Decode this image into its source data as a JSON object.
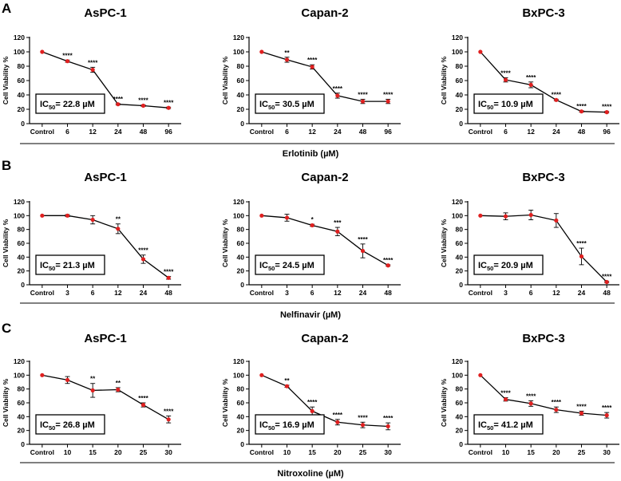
{
  "chart_data": [
    {
      "row": "A",
      "drug": "Erlotinib (µM)",
      "categories": [
        "Control",
        "6",
        "12",
        "24",
        "48",
        "96"
      ],
      "panels": [
        {
          "title": "AsPC-1",
          "ic50_value": "22.8",
          "ic50_unit": "µM",
          "values": [
            100,
            87,
            75,
            27,
            25,
            22
          ],
          "errors": [
            0,
            1.5,
            3.5,
            1,
            1,
            1
          ],
          "sig": [
            "",
            "****",
            "****",
            "****",
            "****",
            "****"
          ]
        },
        {
          "title": "Capan-2",
          "ic50_value": "30.5",
          "ic50_unit": "µM",
          "values": [
            100,
            89,
            79,
            39,
            31,
            31
          ],
          "errors": [
            0,
            3.5,
            3,
            3.5,
            3,
            3
          ],
          "sig": [
            "",
            "**",
            "****",
            "****",
            "****",
            "****"
          ]
        },
        {
          "title": "BxPC-3",
          "ic50_value": "10.9",
          "ic50_unit": "µM",
          "values": [
            100,
            61,
            54,
            33,
            17,
            16
          ],
          "errors": [
            0,
            3,
            4,
            1,
            1,
            1
          ],
          "sig": [
            "",
            "****",
            "****",
            "****",
            "****",
            "****"
          ]
        }
      ]
    },
    {
      "row": "B",
      "drug": "Nelfinavir (µM)",
      "categories": [
        "Control",
        "3",
        "6",
        "12",
        "24",
        "48"
      ],
      "panels": [
        {
          "title": "AsPC-1",
          "ic50_value": "21.3",
          "ic50_unit": "µM",
          "values": [
            100,
            100,
            94,
            81,
            37,
            10
          ],
          "errors": [
            0,
            1.5,
            6,
            7,
            6,
            2
          ],
          "sig": [
            "",
            "",
            "",
            "**",
            "****",
            "****"
          ]
        },
        {
          "title": "Capan-2",
          "ic50_value": "24.5",
          "ic50_unit": "µM",
          "values": [
            100,
            97,
            86,
            77,
            49,
            28
          ],
          "errors": [
            0,
            5,
            1.5,
            6,
            10,
            1
          ],
          "sig": [
            "",
            "",
            "*",
            "***",
            "****",
            "****"
          ]
        },
        {
          "title": "BxPC-3",
          "ic50_value": "20.9",
          "ic50_unit": "µM",
          "values": [
            100,
            99,
            101,
            93,
            41,
            4
          ],
          "errors": [
            0,
            5,
            7,
            10,
            12,
            1
          ],
          "sig": [
            "",
            "",
            "",
            "",
            "****",
            "****"
          ]
        }
      ]
    },
    {
      "row": "C",
      "drug": "Nitroxoline (µM)",
      "categories": [
        "Control",
        "10",
        "15",
        "20",
        "25",
        "30"
      ],
      "panels": [
        {
          "title": "AsPC-1",
          "ic50_value": "26.8",
          "ic50_unit": "µM",
          "values": [
            100,
            93,
            78,
            79,
            57,
            36
          ],
          "errors": [
            0,
            5,
            10,
            3,
            3,
            5
          ],
          "sig": [
            "",
            "",
            "**",
            "**",
            "****",
            "****"
          ]
        },
        {
          "title": "Capan-2",
          "ic50_value": "16.9",
          "ic50_unit": "µM",
          "values": [
            100,
            84,
            48,
            32,
            28,
            26
          ],
          "errors": [
            0,
            1.5,
            6,
            4,
            4,
            5
          ],
          "sig": [
            "",
            "**",
            "****",
            "****",
            "****",
            "****"
          ]
        },
        {
          "title": "BxPC-3",
          "ic50_value": "41.2",
          "ic50_unit": "µM",
          "values": [
            100,
            65,
            59,
            50,
            45,
            42
          ],
          "errors": [
            0,
            2.5,
            4,
            4,
            3,
            4
          ],
          "sig": [
            "",
            "****",
            "****",
            "****",
            "****",
            "****"
          ]
        }
      ]
    }
  ],
  "axis": {
    "ylabel": "Cell Viability %",
    "yticks": [
      0,
      20,
      40,
      60,
      80,
      100,
      120
    ],
    "ylim": [
      0,
      120
    ]
  },
  "ic50_label": "IC",
  "ic50_sub": "50",
  "ic50_eq": "= ",
  "colors": {
    "point": "#e02020",
    "line": "#000000"
  }
}
